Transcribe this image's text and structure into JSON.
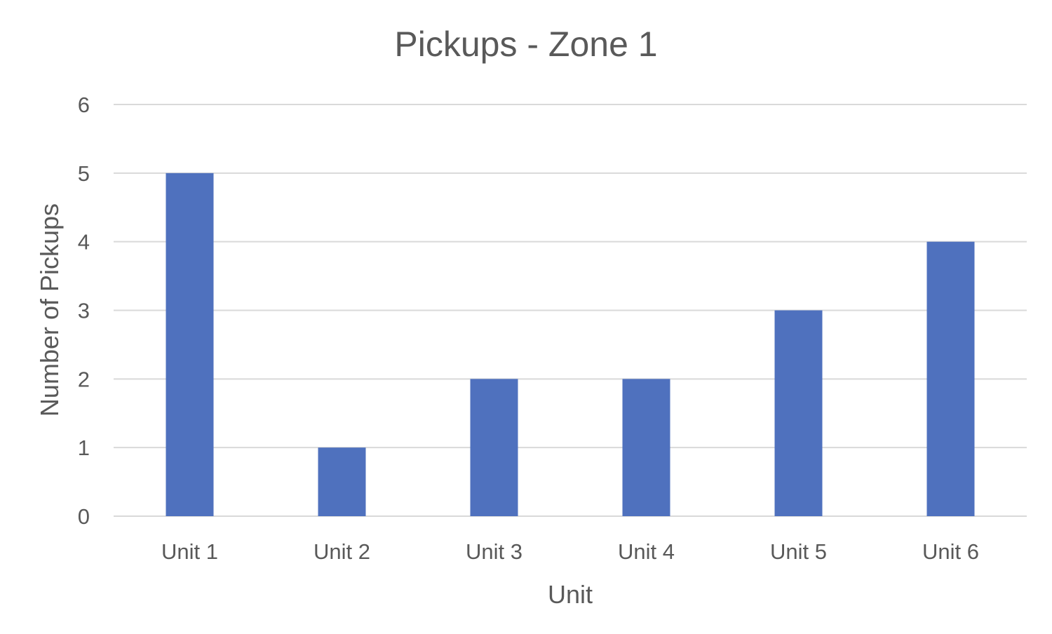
{
  "chart_data": {
    "type": "bar",
    "title": "Pickups - Zone 1",
    "xlabel": "Unit",
    "ylabel": "Number of Pickups",
    "categories": [
      "Unit 1",
      "Unit 2",
      "Unit 3",
      "Unit 4",
      "Unit 5",
      "Unit 6"
    ],
    "values": [
      5,
      1,
      2,
      2,
      3,
      4
    ],
    "ylim": [
      0,
      6
    ],
    "yticks": [
      "0",
      "1",
      "2",
      "3",
      "4",
      "5",
      "6"
    ],
    "grid": true,
    "legend": "none",
    "bar_color": "#4f71be",
    "grid_color": "#d9d9d9",
    "text_color": "#595959"
  }
}
